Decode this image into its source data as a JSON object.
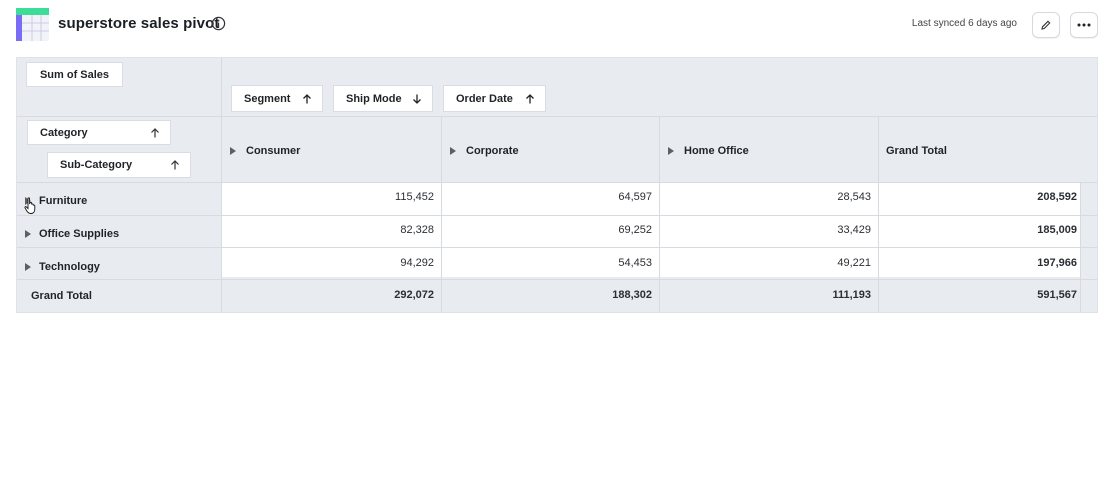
{
  "header": {
    "title": "superstore sales pivot",
    "synced": "Last synced 6 days ago",
    "app_icon": "table-grid-icon",
    "info_icon": "info-icon",
    "edit_icon": "pencil-icon",
    "more_icon": "ellipsis-icon"
  },
  "pivot": {
    "value_field": "Sum of Sales",
    "column_fields": [
      {
        "label": "Segment",
        "sort": "up"
      },
      {
        "label": "Ship Mode",
        "sort": "down"
      },
      {
        "label": "Order Date",
        "sort": "up"
      }
    ],
    "row_fields": [
      {
        "label": "Category",
        "sort": "up"
      },
      {
        "label": "Sub-Category",
        "sort": "up"
      }
    ],
    "columns": [
      "Consumer",
      "Corporate",
      "Home Office",
      "Grand Total"
    ],
    "rows": [
      {
        "label": "Furniture",
        "values": [
          "115,452",
          "64,597",
          "28,543",
          "208,592"
        ]
      },
      {
        "label": "Office Supplies",
        "values": [
          "82,328",
          "69,252",
          "33,429",
          "185,009"
        ]
      },
      {
        "label": "Technology",
        "values": [
          "94,292",
          "54,453",
          "49,221",
          "197,966"
        ]
      }
    ],
    "grand_total": {
      "label": "Grand Total",
      "values": [
        "292,072",
        "188,302",
        "111,193",
        "591,567"
      ]
    }
  },
  "colors": {
    "accent_green": "#3ddc97",
    "accent_purple": "#7b6cf6",
    "header_bg": "#e8ecf1",
    "cell_bg": "#ffffff"
  }
}
